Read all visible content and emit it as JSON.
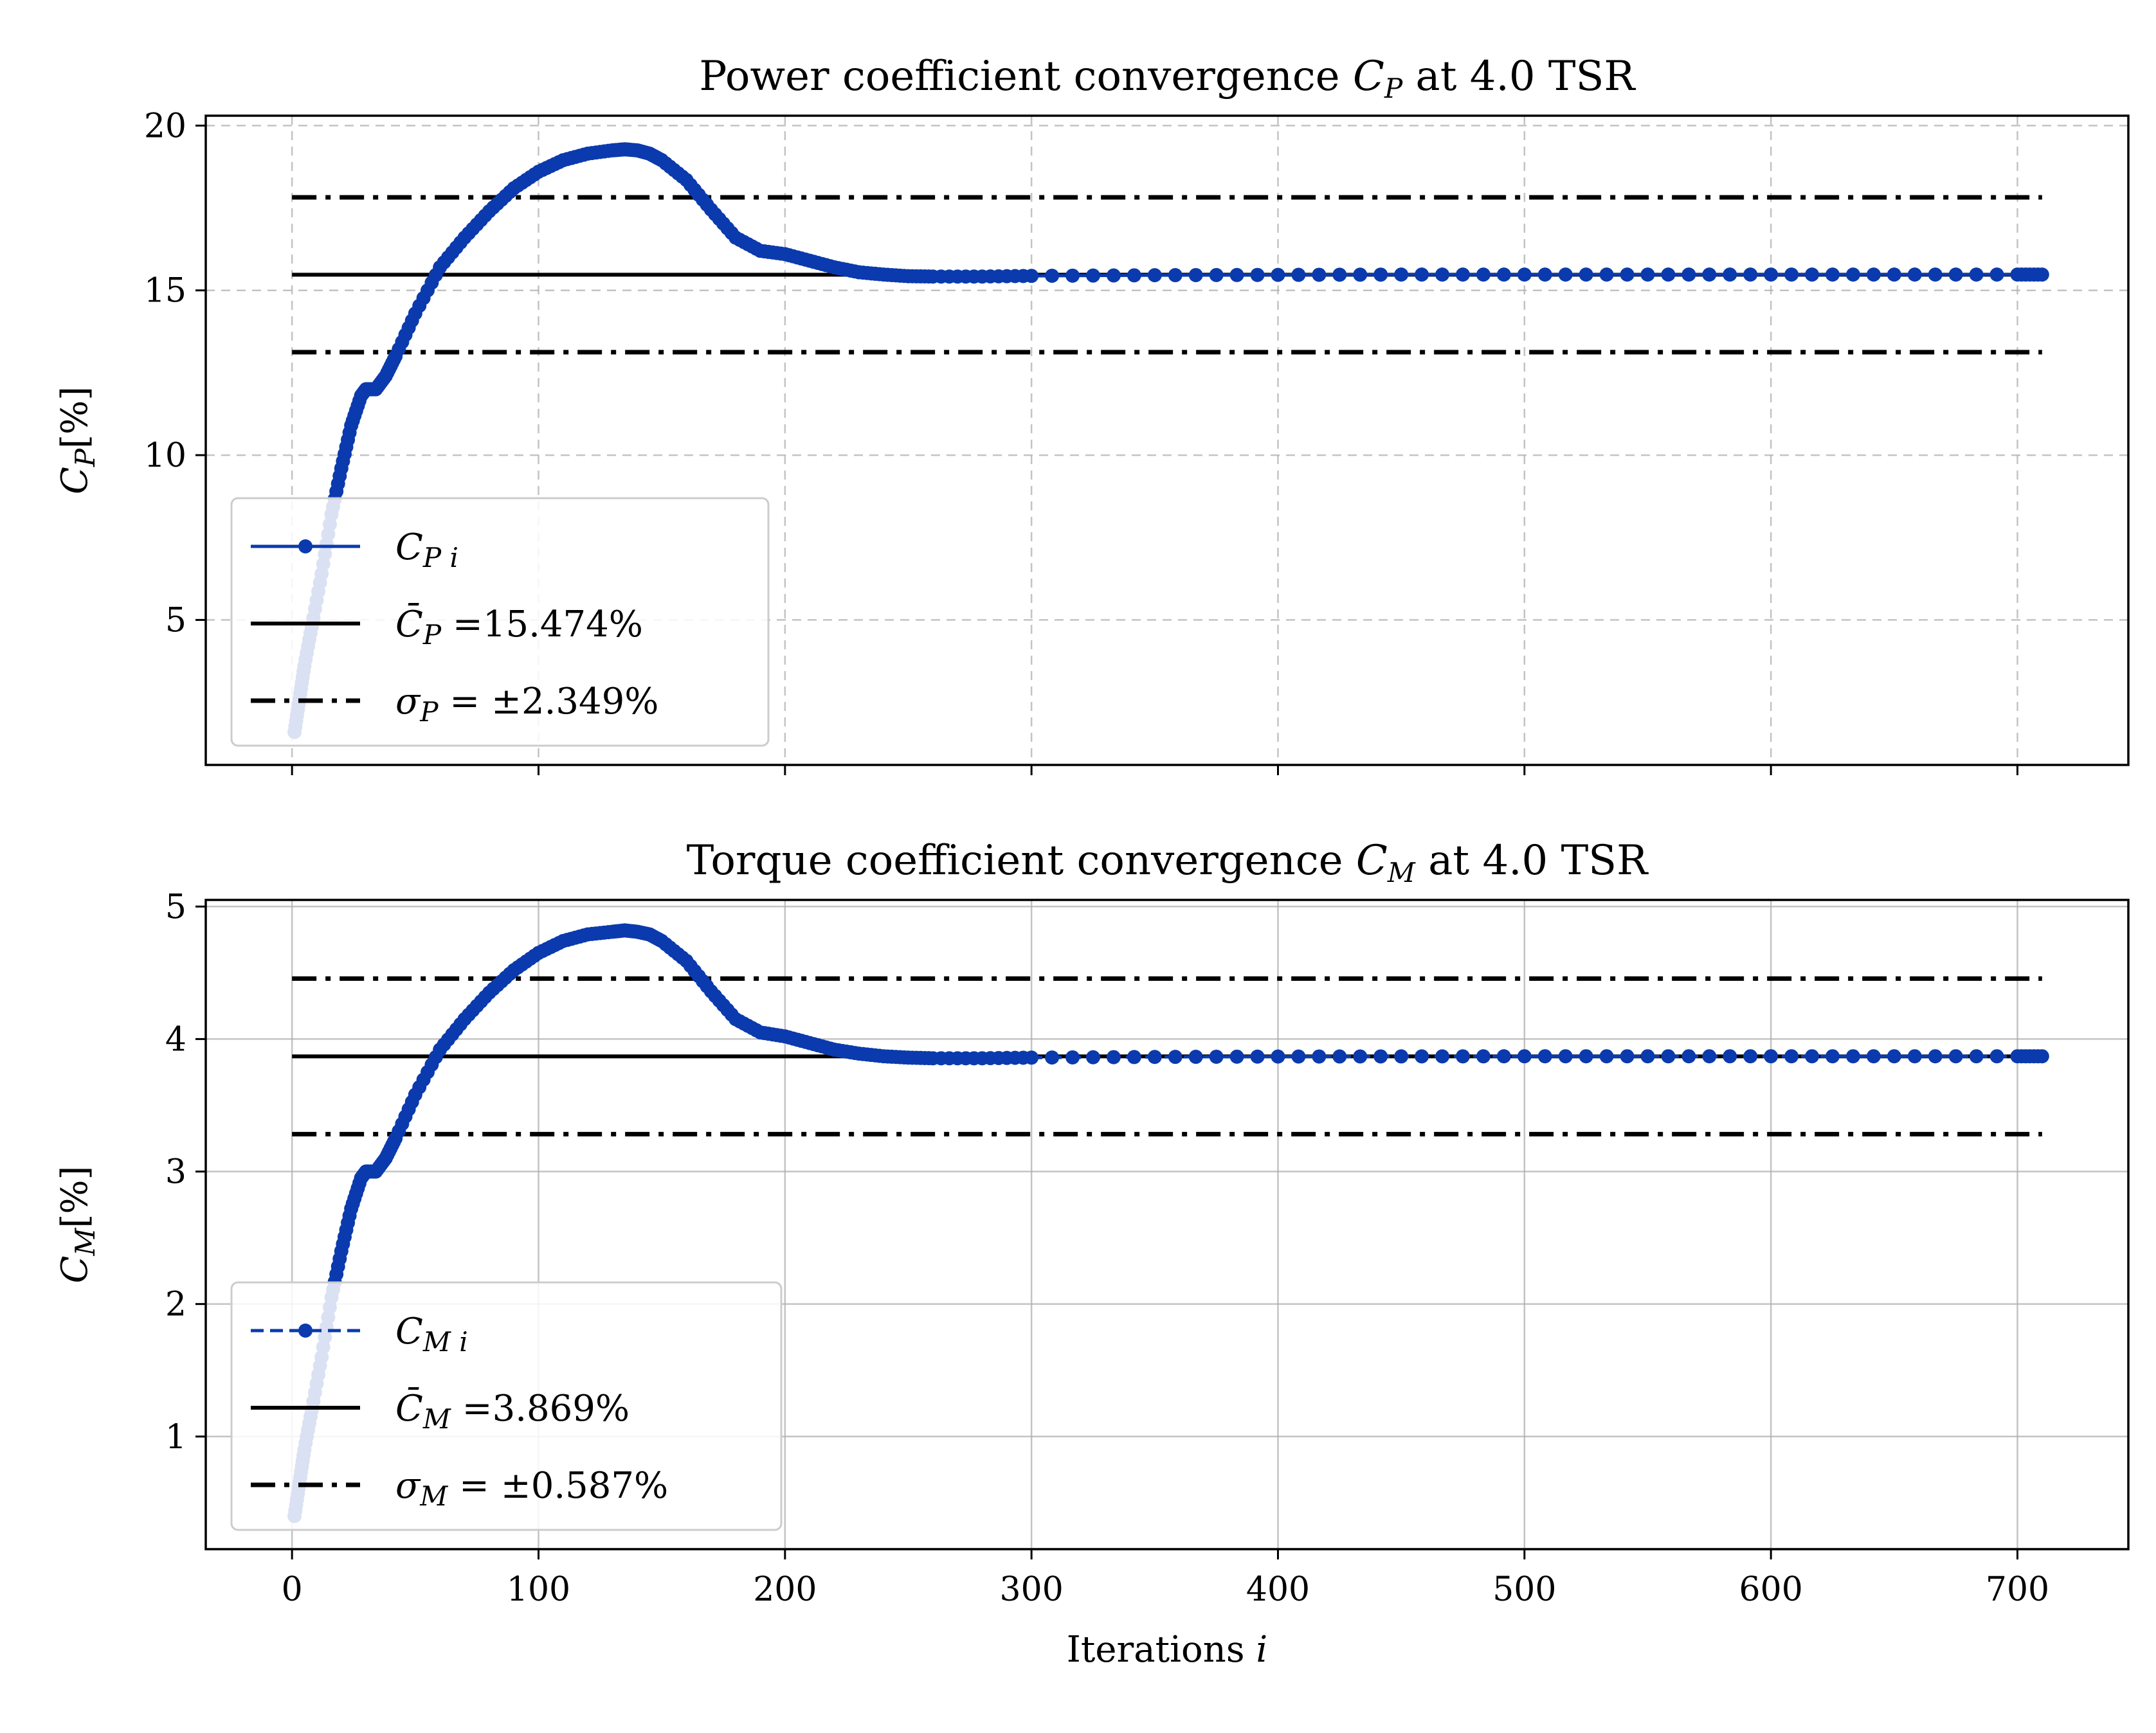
{
  "colors": {
    "series": "#0a3aad",
    "mean": "#000000",
    "band": "#000000",
    "grid": "#b0b0b0"
  },
  "chart_data": [
    {
      "type": "line",
      "title": {
        "main": "Power coefficient convergence ",
        "var": "C",
        "sub": "P",
        "tail": " at 4.0 TSR"
      },
      "ylabel": {
        "var": "C",
        "sub": "P",
        "unit": "[%]"
      },
      "xlabel": "",
      "xlim": [
        -35,
        745
      ],
      "ylim": [
        0.6,
        20.3
      ],
      "x_ticks": [
        0,
        100,
        200,
        300,
        400,
        500,
        600,
        700
      ],
      "x_tick_labels_shown": false,
      "y_ticks": [
        5,
        10,
        15,
        20
      ],
      "y_tick_labels": [
        "5",
        "10",
        "15",
        "20"
      ],
      "grid": "dashed",
      "legend_position": "lower-left",
      "legend": [
        {
          "kind": "series",
          "var": "C",
          "sub": "P i",
          "rest": ""
        },
        {
          "kind": "mean",
          "var": "C̄",
          "sub": "P",
          "rest": " =15.474%"
        },
        {
          "kind": "band",
          "var": "σ",
          "sub": "P",
          "rest": " = ±2.349%"
        }
      ],
      "mean": 15.474,
      "sigma": 2.349,
      "hline_xrange": [
        0,
        710
      ],
      "series": [
        {
          "name": "C_Pi",
          "x": [
            1,
            3,
            5,
            8,
            12,
            16,
            20,
            24,
            28,
            30,
            34,
            38,
            42,
            50,
            60,
            70,
            80,
            90,
            100,
            110,
            120,
            130,
            135,
            140,
            145,
            150,
            160,
            170,
            180,
            190,
            200,
            210,
            220,
            230,
            240,
            250,
            260,
            280,
            300,
            350,
            400,
            450,
            500,
            550,
            600,
            650,
            700,
            710
          ],
          "y": [
            1.6,
            2.6,
            3.6,
            4.8,
            6.4,
            8.2,
            9.6,
            10.9,
            11.8,
            12.0,
            12.0,
            12.4,
            13.0,
            14.3,
            15.7,
            16.6,
            17.4,
            18.1,
            18.6,
            18.95,
            19.15,
            19.25,
            19.28,
            19.25,
            19.15,
            18.95,
            18.35,
            17.45,
            16.6,
            16.2,
            16.1,
            15.9,
            15.7,
            15.55,
            15.48,
            15.43,
            15.42,
            15.42,
            15.44,
            15.46,
            15.47,
            15.48,
            15.48,
            15.48,
            15.48,
            15.48,
            15.48,
            15.48
          ]
        }
      ]
    },
    {
      "type": "line",
      "title": {
        "main": "Torque coefficient convergence ",
        "var": "C",
        "sub": "M",
        "tail": " at 4.0 TSR"
      },
      "ylabel": {
        "var": "C",
        "sub": "M",
        "unit": "[%]"
      },
      "xlabel": {
        "main": "Iterations ",
        "var": "i"
      },
      "xlim": [
        -35,
        745
      ],
      "ylim": [
        0.15,
        5.05
      ],
      "x_ticks": [
        0,
        100,
        200,
        300,
        400,
        500,
        600,
        700
      ],
      "x_tick_labels_shown": true,
      "x_tick_labels": [
        "0",
        "100",
        "200",
        "300",
        "400",
        "500",
        "600",
        "700"
      ],
      "y_ticks": [
        1,
        2,
        3,
        4,
        5
      ],
      "y_tick_labels": [
        "1",
        "2",
        "3",
        "4",
        "5"
      ],
      "grid": "solid",
      "legend_position": "lower-left",
      "legend": [
        {
          "kind": "series",
          "var": "C",
          "sub": "M i",
          "rest": ""
        },
        {
          "kind": "mean",
          "var": "C̄",
          "sub": "M",
          "rest": " =3.869%"
        },
        {
          "kind": "band",
          "var": "σ",
          "sub": "M",
          "rest": " = ±0.587%"
        }
      ],
      "mean": 3.869,
      "sigma": 0.587,
      "hline_xrange": [
        0,
        710
      ],
      "series": [
        {
          "name": "C_Mi",
          "x": [
            1,
            3,
            5,
            8,
            12,
            16,
            20,
            24,
            28,
            30,
            34,
            38,
            42,
            50,
            60,
            70,
            80,
            90,
            100,
            110,
            120,
            130,
            135,
            140,
            145,
            150,
            160,
            170,
            180,
            190,
            200,
            210,
            220,
            230,
            240,
            250,
            260,
            280,
            300,
            350,
            400,
            450,
            500,
            550,
            600,
            650,
            700,
            710
          ],
          "y": [
            0.4,
            0.65,
            0.9,
            1.2,
            1.6,
            2.05,
            2.4,
            2.72,
            2.95,
            3.0,
            3.0,
            3.1,
            3.25,
            3.58,
            3.92,
            4.15,
            4.35,
            4.52,
            4.65,
            4.74,
            4.79,
            4.81,
            4.82,
            4.81,
            4.79,
            4.74,
            4.59,
            4.36,
            4.15,
            4.05,
            4.02,
            3.97,
            3.92,
            3.89,
            3.87,
            3.86,
            3.855,
            3.855,
            3.86,
            3.865,
            3.868,
            3.869,
            3.87,
            3.87,
            3.87,
            3.87,
            3.87,
            3.87
          ]
        }
      ]
    }
  ]
}
